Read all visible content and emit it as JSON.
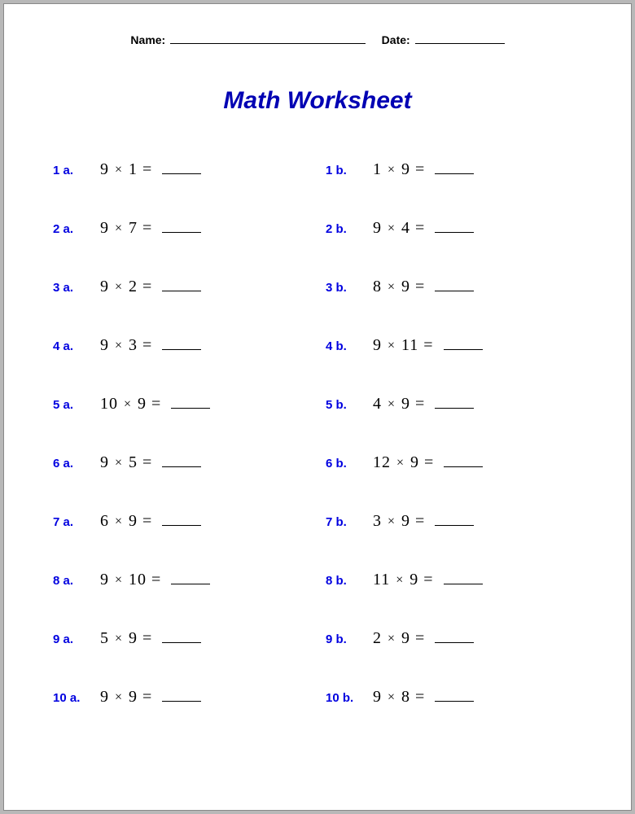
{
  "header": {
    "name_label": "Name:",
    "date_label": "Date:"
  },
  "title": "Math Worksheet",
  "label_color": "#0000e0",
  "title_color": "#0000b3",
  "expr_color": "#000000",
  "background_color": "#ffffff",
  "title_fontsize": 30,
  "label_fontsize": 15,
  "expr_fontsize": 20,
  "operator": "×",
  "equals": "=",
  "problems": [
    {
      "label": "1 a.",
      "a": "9",
      "b": "1"
    },
    {
      "label": "1 b.",
      "a": "1",
      "b": "9"
    },
    {
      "label": "2 a.",
      "a": "9",
      "b": "7"
    },
    {
      "label": "2 b.",
      "a": "9",
      "b": "4"
    },
    {
      "label": "3 a.",
      "a": "9",
      "b": "2"
    },
    {
      "label": "3 b.",
      "a": "8",
      "b": "9"
    },
    {
      "label": "4 a.",
      "a": "9",
      "b": "3"
    },
    {
      "label": "4 b.",
      "a": "9",
      "b": "11"
    },
    {
      "label": "5 a.",
      "a": "10",
      "b": "9"
    },
    {
      "label": "5 b.",
      "a": "4",
      "b": "9"
    },
    {
      "label": "6 a.",
      "a": "9",
      "b": "5"
    },
    {
      "label": "6 b.",
      "a": "12",
      "b": "9"
    },
    {
      "label": "7 a.",
      "a": "6",
      "b": "9"
    },
    {
      "label": "7 b.",
      "a": "3",
      "b": "9"
    },
    {
      "label": "8 a.",
      "a": "9",
      "b": "10"
    },
    {
      "label": "8 b.",
      "a": "11",
      "b": "9"
    },
    {
      "label": "9 a.",
      "a": "5",
      "b": "9"
    },
    {
      "label": "9 b.",
      "a": "2",
      "b": "9"
    },
    {
      "label": "10 a.",
      "a": "9",
      "b": "9"
    },
    {
      "label": "10 b.",
      "a": "9",
      "b": "8"
    }
  ]
}
